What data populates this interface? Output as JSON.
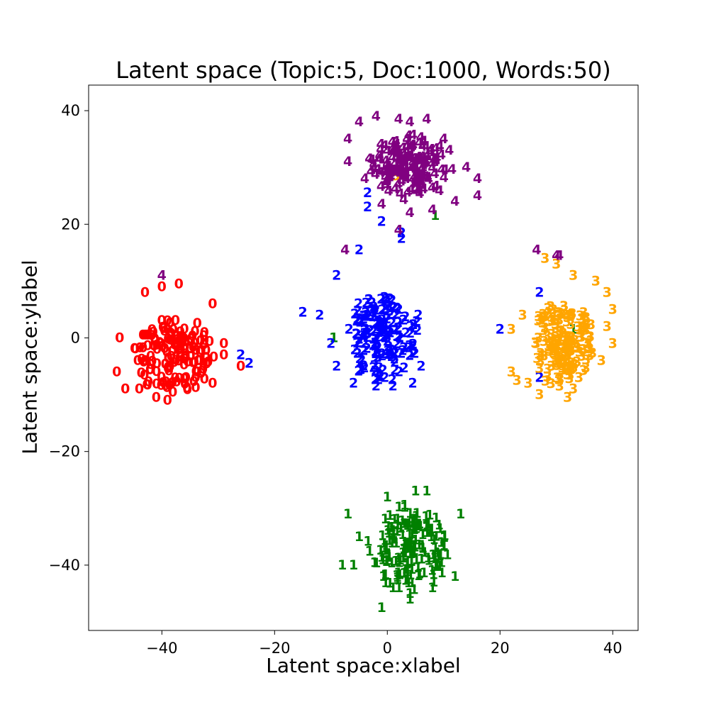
{
  "chart_data": {
    "type": "scatter",
    "title": "Latent space (Topic:5, Doc:1000, Words:50)",
    "xlabel": "Latent space:xlabel",
    "ylabel": "Latent space:ylabel",
    "xlim": [
      -53,
      44.5
    ],
    "ylim": [
      -51.5,
      44.5
    ],
    "xticks": [
      -40,
      -20,
      0,
      20,
      40
    ],
    "yticks": [
      -40,
      -20,
      0,
      20,
      40
    ],
    "xtick_labels": [
      "−40",
      "−20",
      "0",
      "20",
      "40"
    ],
    "ytick_labels": [
      "−40",
      "−20",
      "0",
      "20",
      "40"
    ],
    "grid": false,
    "point_marker": "topic number as text glyph",
    "colors": {
      "0": "#ff0000",
      "1": "#008000",
      "2": "#0000ff",
      "3": "#ffa500",
      "4": "#800080"
    },
    "series": [
      {
        "label": "0",
        "center": [
          -38,
          -3
        ],
        "spread": [
          8,
          7
        ],
        "count": 140,
        "points": [
          [
            -46.5,
            -9
          ],
          [
            -44,
            -9
          ],
          [
            -41,
            -10.5
          ],
          [
            -39,
            -11
          ],
          [
            -48,
            -6
          ],
          [
            -47.5,
            0
          ],
          [
            -43,
            8
          ],
          [
            -40,
            9
          ],
          [
            -37,
            9.5
          ],
          [
            -31,
            6
          ],
          [
            -29,
            -1
          ],
          [
            -29,
            -3
          ],
          [
            -26,
            -5
          ],
          [
            -31,
            -8
          ],
          [
            -34,
            -7
          ],
          [
            -43,
            -4
          ],
          [
            -36,
            -2
          ],
          [
            -39,
            3
          ]
        ]
      },
      {
        "label": "1",
        "center": [
          4,
          -37
        ],
        "spread": [
          8,
          8
        ],
        "count": 160,
        "points": [
          [
            -7,
            -31
          ],
          [
            0,
            -28
          ],
          [
            5,
            -27
          ],
          [
            7,
            -27
          ],
          [
            13,
            -31
          ],
          [
            12,
            -42
          ],
          [
            8,
            -44
          ],
          [
            4,
            -45
          ],
          [
            1,
            -44
          ],
          [
            -8,
            -40
          ],
          [
            -6,
            -40
          ],
          [
            -5,
            -35
          ],
          [
            -9.5,
            0
          ],
          [
            8.5,
            21.5
          ],
          [
            33,
            1.5
          ],
          [
            -1,
            -47.5
          ],
          [
            4,
            -46
          ]
        ]
      },
      {
        "label": "2",
        "center": [
          -1,
          0
        ],
        "spread": [
          7,
          8
        ],
        "count": 160,
        "points": [
          [
            -5,
            15.5
          ],
          [
            -9,
            11
          ],
          [
            -15,
            4.5
          ],
          [
            -12,
            4
          ],
          [
            5.5,
            4
          ],
          [
            2,
            5
          ],
          [
            6,
            -5
          ],
          [
            4.5,
            -8
          ],
          [
            1,
            -8.5
          ],
          [
            -2,
            -8.5
          ],
          [
            -6,
            -8
          ],
          [
            -9,
            -5
          ],
          [
            -10,
            -1
          ],
          [
            20,
            1.5
          ],
          [
            27,
            -7
          ],
          [
            -26,
            -3
          ],
          [
            -24.5,
            -4.5
          ],
          [
            -3.5,
            25.5
          ],
          [
            -3.5,
            23
          ],
          [
            -1,
            20.5
          ],
          [
            2.5,
            18.5
          ],
          [
            2.5,
            17.5
          ],
          [
            27,
            8
          ]
        ]
      },
      {
        "label": "3",
        "center": [
          31,
          -1
        ],
        "spread": [
          6,
          8
        ],
        "count": 160,
        "points": [
          [
            28,
            14
          ],
          [
            30,
            13
          ],
          [
            33,
            11
          ],
          [
            37,
            10
          ],
          [
            39,
            8
          ],
          [
            40,
            5
          ],
          [
            39,
            2
          ],
          [
            40,
            -1
          ],
          [
            38,
            -4
          ],
          [
            34,
            -7
          ],
          [
            33,
            -9
          ],
          [
            32,
            -10.5
          ],
          [
            27,
            -10
          ],
          [
            25,
            -8
          ],
          [
            22,
            -6
          ],
          [
            23,
            -7.5
          ],
          [
            22,
            1.5
          ],
          [
            24,
            4
          ],
          [
            1.5,
            28.5
          ]
        ]
      },
      {
        "label": "4",
        "center": [
          4,
          30
        ],
        "spread": [
          8,
          6
        ],
        "count": 160,
        "points": [
          [
            -5,
            38
          ],
          [
            -2,
            39
          ],
          [
            2,
            38.5
          ],
          [
            4,
            38
          ],
          [
            7,
            38.5
          ],
          [
            10,
            35
          ],
          [
            11,
            33
          ],
          [
            14,
            30
          ],
          [
            16,
            28
          ],
          [
            16,
            25
          ],
          [
            12,
            24
          ],
          [
            8,
            22.5
          ],
          [
            4,
            22
          ],
          [
            2,
            19
          ],
          [
            -1,
            23.5
          ],
          [
            -4,
            28
          ],
          [
            -7,
            31
          ],
          [
            -7,
            35
          ],
          [
            -40,
            11
          ],
          [
            -7.5,
            15.5
          ],
          [
            26.5,
            15.5
          ],
          [
            30.5,
            14.5
          ],
          [
            30,
            14.5
          ]
        ]
      }
    ]
  }
}
